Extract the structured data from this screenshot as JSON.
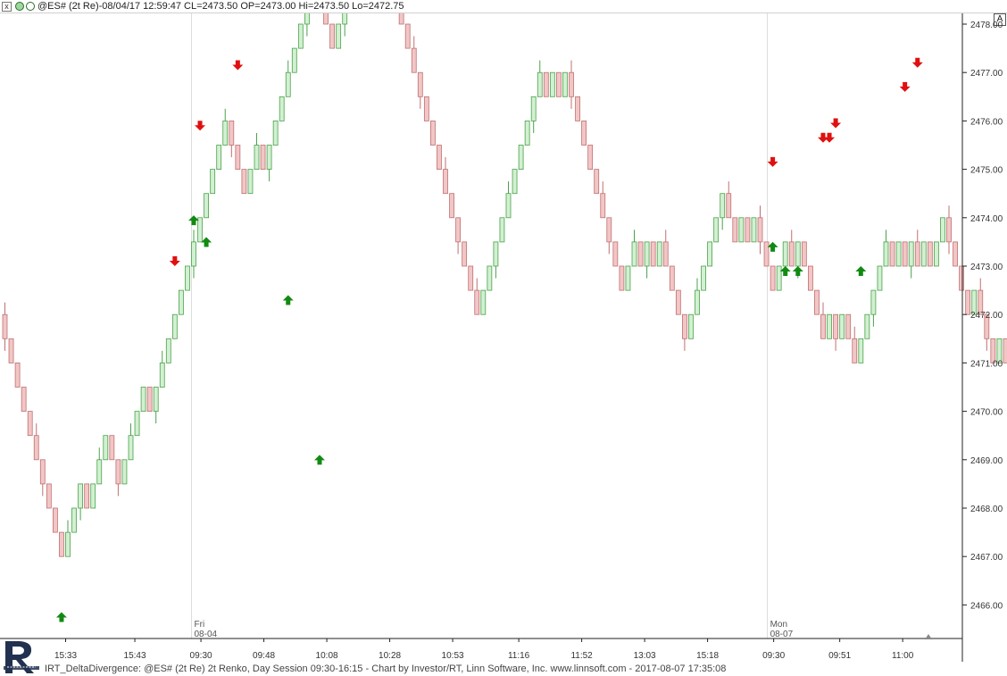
{
  "window": {
    "title": "@ES# (2t Re)-08/04/17 12:59:47 CL=2473.50 OP=2473.00 Hi=2473.50 Lo=2472.75",
    "close_glyph": "x",
    "a_button_label": "A"
  },
  "footer": {
    "text": "IRT_DeltaDivergence: @ES# (2t Re) 2t Renko, Day Session 09:30-16:15 - Chart by Investor/RT, Linn Software, Inc. www.linnsoft.com - 2017-08-07 17:35:08"
  },
  "colors": {
    "up_fill": "#d2f0d2",
    "up_stroke": "#4aa24a",
    "down_fill": "#f2c6c6",
    "down_stroke": "#c07070",
    "up_arrow": "#128a12",
    "down_arrow": "#e01010",
    "axis": "#222222",
    "session_divider": "#dcdcdc"
  },
  "chart_data": {
    "type": "candlestick-renko",
    "brick_size": 0.5,
    "ylim": [
      2465.3,
      2478.3
    ],
    "y_ticks": [
      "2466.00",
      "2467.00",
      "2468.00",
      "2469.00",
      "2470.00",
      "2471.00",
      "2472.00",
      "2473.00",
      "2474.00",
      "2475.00",
      "2476.00",
      "2477.00",
      "2478.00"
    ],
    "x_ticks": [
      "15:33",
      "15:43",
      "09:30",
      "09:48",
      "10:08",
      "10:28",
      "10:53",
      "11:16",
      "11:52",
      "13:03",
      "15:18",
      "09:30",
      "09:51",
      "11:00"
    ],
    "x_tick_bars": [
      10.0,
      21.0,
      31.5,
      41.5,
      51.5,
      61.5,
      71.5,
      82.0,
      92.0,
      102.0,
      112.0,
      122.5,
      133.0,
      143.0
    ],
    "session_labels": [
      {
        "day": "Fri",
        "date": "08-04",
        "bar": 30.0
      },
      {
        "day": "Mon",
        "date": "08-07",
        "bar": 121.5
      }
    ],
    "start_close": 2472.0,
    "directions": "DDDDDDDDDDUUUDUUUDDUUUUDUUUUUUUUUUUUDDDUUDUUUUUUUUDDDUUUUDUDUDDDDDDDDDDDDDDDUUUUUUUUUUDUDUDDDDDDDDDUUDUDUDDDDUUUUUUDDUDUDDDUUDUDDDDUDUDDUUUUUDUDUDUDUUDDDDUDDDUDUUUUUDDDDDUDUUUUDDDUUUUDUDUDDDDUDUDUDDUUUUUUUUUDUDUDUDDUUUUUUUDDDUUDDUDUDDDUDUUUUUUUUUUDUDUDUDDD",
    "signals": [
      {
        "type": "buy",
        "bar": 9,
        "price": 2465.85
      },
      {
        "type": "sell",
        "bar": 27,
        "price": 2473.0
      },
      {
        "type": "buy",
        "bar": 30,
        "price": 2474.05
      },
      {
        "type": "sell",
        "bar": 31,
        "price": 2475.8
      },
      {
        "type": "buy",
        "bar": 32,
        "price": 2473.6
      },
      {
        "type": "sell",
        "bar": 37,
        "price": 2477.05
      },
      {
        "type": "buy",
        "bar": 45,
        "price": 2472.4
      },
      {
        "type": "buy",
        "bar": 50,
        "price": 2469.1
      },
      {
        "type": "sell",
        "bar": 122,
        "price": 2475.05
      },
      {
        "type": "buy",
        "bar": 122,
        "price": 2473.5
      },
      {
        "type": "buy",
        "bar": 124,
        "price": 2473.0
      },
      {
        "type": "buy",
        "bar": 126,
        "price": 2473.0
      },
      {
        "type": "sell",
        "bar": 130,
        "price": 2475.55
      },
      {
        "type": "sell",
        "bar": 131,
        "price": 2475.55
      },
      {
        "type": "sell",
        "bar": 132,
        "price": 2475.85
      },
      {
        "type": "buy",
        "bar": 136,
        "price": 2473.0
      },
      {
        "type": "sell",
        "bar": 143,
        "price": 2476.6
      },
      {
        "type": "sell",
        "bar": 145,
        "price": 2477.1
      }
    ]
  }
}
